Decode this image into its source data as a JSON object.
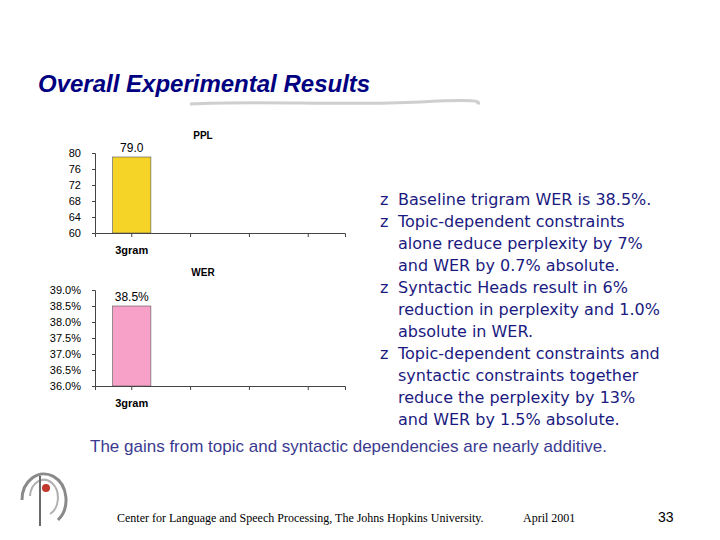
{
  "slide": {
    "title": "Overall Experimental Results",
    "bullet": "z",
    "bullets": [
      [
        "Baseline trigram WER is 38.5%."
      ],
      [
        "Topic-dependent constraints",
        "alone reduce perplexity by 7%",
        "and WER by 0.7% absolute."
      ],
      [
        "Syntactic Heads result in 6%",
        "reduction in perplexity and 1.0%",
        "absolute in WER."
      ],
      [
        "Topic-dependent constraints and",
        "syntactic constraints together",
        "reduce the perplexity by 13%",
        "and WER by 1.5% absolute."
      ]
    ],
    "overlay": "The gains from topic and syntactic dependencies are nearly additive.",
    "footer": "Center for Language and Speech Processing, The Johns Hopkins University.",
    "date": "April 2001",
    "page": "33"
  },
  "chart_data": [
    {
      "type": "bar",
      "title": "PPL",
      "categories": [
        "3gram",
        null,
        null,
        null
      ],
      "values": [
        79.0,
        null,
        null,
        null
      ],
      "value_labels": [
        "79.0",
        null,
        null,
        null
      ],
      "color": "#f5d327",
      "ylim": [
        60,
        80
      ],
      "yticks": [
        60,
        64,
        68,
        72,
        76,
        80
      ],
      "grid": false,
      "data_labels": true
    },
    {
      "type": "bar",
      "title": "WER",
      "categories": [
        "3gram",
        null,
        null,
        null
      ],
      "values": [
        38.5,
        null,
        null,
        null
      ],
      "value_labels": [
        "38.5%",
        null,
        null,
        null
      ],
      "color": "#f7a1c9",
      "ylim": [
        36,
        39
      ],
      "yticks": [
        {
          "value": 36,
          "label": "36.0%"
        },
        {
          "value": 36.5,
          "label": "36.5%"
        },
        {
          "value": 37,
          "label": "37.0%"
        },
        {
          "value": 37.5,
          "label": "37.5%"
        },
        {
          "value": 38,
          "label": "38.0%"
        },
        {
          "value": 38.5,
          "label": "38.5%"
        },
        {
          "value": 39,
          "label": "39.0%"
        }
      ],
      "grid": false,
      "data_labels": true
    }
  ]
}
